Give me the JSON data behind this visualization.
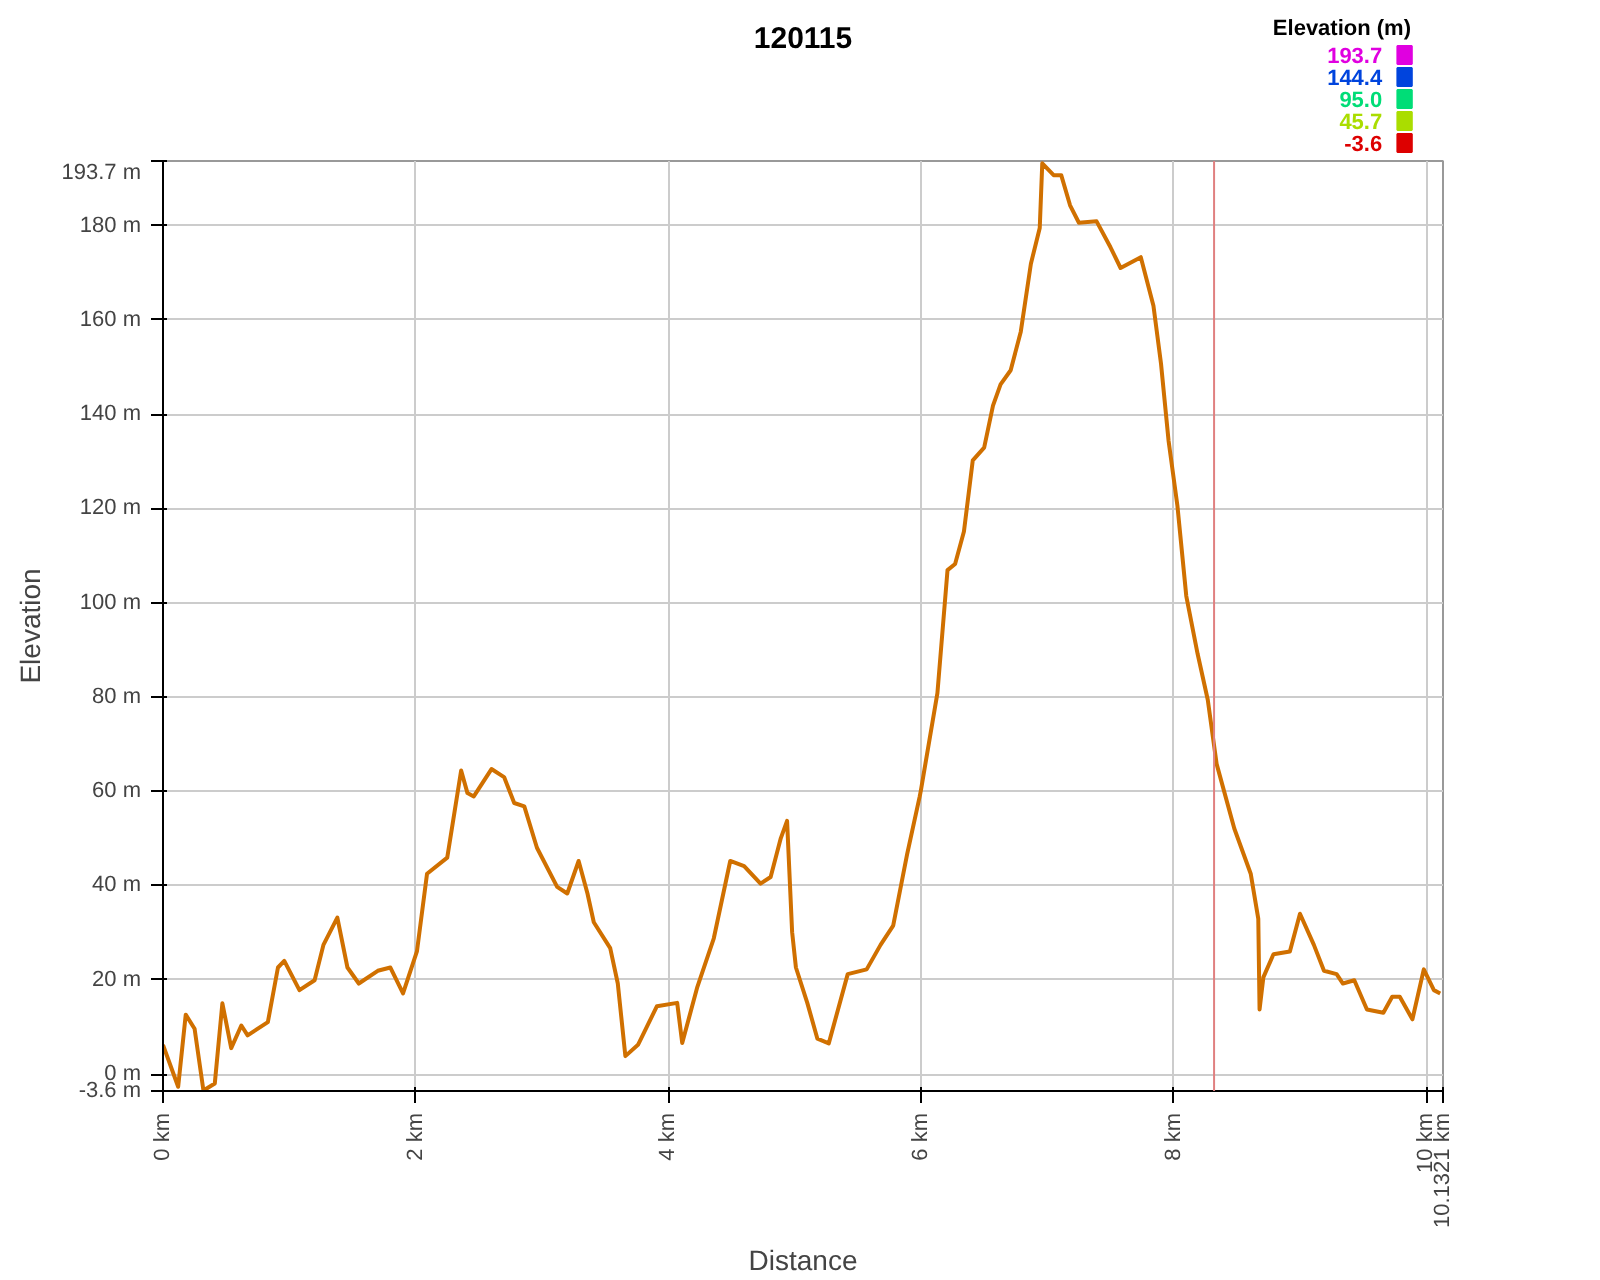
{
  "chart_data": {
    "type": "line",
    "title": "120115",
    "xlabel": "Distance",
    "ylabel": "Elevation",
    "clabel": "Elevation (m)",
    "clim": [
      -3.6,
      193.7
    ],
    "cticks": [
      {
        "value": 193.7,
        "label": "193.7"
      },
      {
        "value": 144.4,
        "label": "144.4"
      },
      {
        "value": 95.0,
        "label": "95.0"
      },
      {
        "value": 45.7,
        "label": "45.7"
      },
      {
        "value": -3.6,
        "label": "-3.6"
      }
    ],
    "colors": [
      "#e000e0",
      "#0044dd",
      "#00dd77",
      "#aadd00",
      "#dd0000"
    ],
    "xlim": [
      0,
      10.1321
    ],
    "xticks": [
      {
        "value": 0,
        "label": "0 km"
      },
      {
        "value": 2,
        "label": "2 km"
      },
      {
        "value": 4,
        "label": "4 km"
      },
      {
        "value": 6,
        "label": "6 km"
      },
      {
        "value": 8,
        "label": "8 km"
      },
      {
        "value": 10,
        "label": "10 km"
      },
      {
        "value": 10.1321,
        "label": "10.1321 km"
      }
    ],
    "ylim": [
      -3.6,
      193.7
    ],
    "yticks": [
      {
        "value": -3.6,
        "label": "-3.6 m"
      },
      {
        "value": 0,
        "label": "0 m"
      },
      {
        "value": 20,
        "label": "20 m"
      },
      {
        "value": 40,
        "label": "40 m"
      },
      {
        "value": 60,
        "label": "60 m"
      },
      {
        "value": 80,
        "label": "80 m"
      },
      {
        "value": 100,
        "label": "100 m"
      },
      {
        "value": 120,
        "label": "120 m"
      },
      {
        "value": 140,
        "label": "140 m"
      },
      {
        "value": 160,
        "label": "160 m"
      },
      {
        "value": 180,
        "label": "180 m"
      },
      {
        "value": 193.7,
        "label": "193.7 m"
      }
    ],
    "grid": true,
    "ref_lines": [
      {
        "axis": "x",
        "value": 8.32,
        "color": "#e08080"
      }
    ],
    "series": [
      {
        "color": "#d07000",
        "x": [
          0,
          0.12,
          0.18,
          0.25,
          0.32,
          0.41,
          0.47,
          0.54,
          0.62,
          0.67,
          0.83,
          0.91,
          0.96,
          1.08,
          1.2,
          1.27,
          1.38,
          1.46,
          1.55,
          1.7,
          1.8,
          1.9,
          2.01,
          2.09,
          2.25,
          2.36,
          2.41,
          2.46,
          2.6,
          2.7,
          2.78,
          2.86,
          2.96,
          3.12,
          3.2,
          3.29,
          3.36,
          3.41,
          3.54,
          3.6,
          3.66,
          3.76,
          3.91,
          4.07,
          4.11,
          4.23,
          4.36,
          4.49,
          4.6,
          4.73,
          4.81,
          4.89,
          4.94,
          4.98,
          5.01,
          5.1,
          5.18,
          5.27,
          5.42,
          5.57,
          5.68,
          5.78,
          5.89,
          5.99,
          6.0,
          6.13,
          6.21,
          6.27,
          6.34,
          6.41,
          6.5,
          6.57,
          6.63,
          6.71,
          6.79,
          6.87,
          6.94,
          6.96,
          7.05,
          7.11,
          7.18,
          7.25,
          7.39,
          7.5,
          7.58,
          7.74,
          7.84,
          7.9,
          7.96,
          8.03,
          8.1,
          8.19,
          8.27,
          8.34,
          8.48,
          8.61,
          8.67,
          8.68,
          8.71,
          8.79,
          8.92,
          9.0,
          9.11,
          9.19,
          9.29,
          9.34,
          9.43,
          9.53,
          9.66,
          9.73,
          9.79,
          9.89,
          9.98,
          10.06,
          10.11
        ],
        "values": [
          6.2,
          -2.7,
          12.6,
          9.6,
          -3.5,
          -2,
          15,
          5.5,
          10.3,
          8.2,
          11,
          22.6,
          24,
          17.8,
          19.9,
          27.4,
          33.2,
          22.6,
          19.2,
          21.9,
          22.6,
          17.1,
          26,
          42.5,
          45.9,
          64.4,
          59.6,
          58.9,
          64.7,
          63,
          57.5,
          56.8,
          48,
          39.7,
          38.3,
          45.2,
          38.3,
          32.2,
          26.7,
          19.2,
          3.8,
          6.2,
          14.4,
          15.1,
          6.6,
          18.5,
          28.8,
          45.2,
          44.1,
          40.4,
          41.8,
          50,
          53.7,
          30.1,
          22.6,
          15.1,
          7.5,
          6.5,
          21.2,
          22.2,
          27.4,
          31.5,
          46.6,
          58.9,
          60.3,
          80.8,
          106.9,
          108.2,
          115.1,
          130.2,
          132.9,
          141.8,
          146.3,
          149.3,
          157.5,
          171.9,
          179.5,
          193.2,
          190.7,
          190.7,
          184.3,
          180.6,
          180.9,
          175.4,
          171,
          173.3,
          163,
          150.7,
          134.3,
          120.5,
          101.4,
          89.1,
          79.4,
          65.8,
          52.1,
          42.5,
          32.9,
          13.7,
          20.5,
          25.4,
          26,
          34,
          27.4,
          21.9,
          21.2,
          19.2,
          19.9,
          13.7,
          13,
          16.4,
          16.4,
          11.6,
          22.2,
          17.8,
          17.1
        ]
      }
    ]
  }
}
